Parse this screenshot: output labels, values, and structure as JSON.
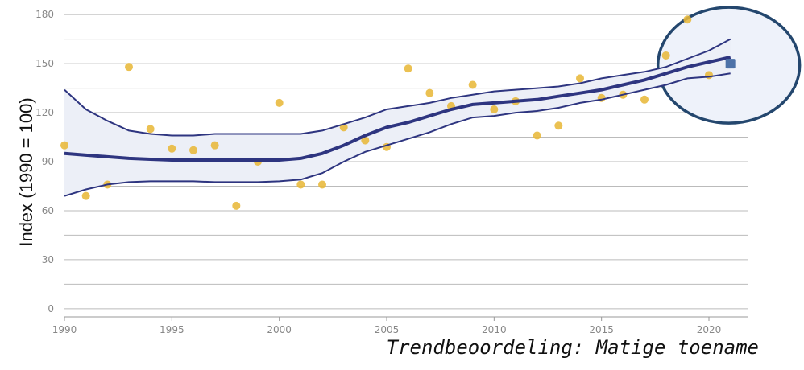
{
  "chart_data": {
    "type": "line",
    "title": "",
    "ylabel": "Index (1990 = 100)",
    "xlabel": "",
    "annotation": "Trendbeoordeling: Matige toename",
    "xlim": [
      1990,
      2021.8
    ],
    "ylim": [
      -5,
      185
    ],
    "xticks": [
      1990,
      1995,
      2000,
      2005,
      2010,
      2015,
      2020
    ],
    "yticks": [
      0,
      30,
      60,
      90,
      120,
      150,
      180
    ],
    "grid": true,
    "points": [
      {
        "x": 1990,
        "y": 100
      },
      {
        "x": 1991,
        "y": 69
      },
      {
        "x": 1992,
        "y": 76
      },
      {
        "x": 1993,
        "y": 148
      },
      {
        "x": 1994,
        "y": 110
      },
      {
        "x": 1995,
        "y": 98
      },
      {
        "x": 1996,
        "y": 97
      },
      {
        "x": 1997,
        "y": 100
      },
      {
        "x": 1998,
        "y": 63
      },
      {
        "x": 1999,
        "y": 90
      },
      {
        "x": 2000,
        "y": 126
      },
      {
        "x": 2001,
        "y": 76
      },
      {
        "x": 2002,
        "y": 76
      },
      {
        "x": 2003,
        "y": 111
      },
      {
        "x": 2004,
        "y": 103
      },
      {
        "x": 2005,
        "y": 99
      },
      {
        "x": 2006,
        "y": 147
      },
      {
        "x": 2007,
        "y": 132
      },
      {
        "x": 2008,
        "y": 124
      },
      {
        "x": 2009,
        "y": 137
      },
      {
        "x": 2010,
        "y": 122
      },
      {
        "x": 2011,
        "y": 127
      },
      {
        "x": 2012,
        "y": 106
      },
      {
        "x": 2013,
        "y": 112
      },
      {
        "x": 2014,
        "y": 141
      },
      {
        "x": 2015,
        "y": 129
      },
      {
        "x": 2016,
        "y": 131
      },
      {
        "x": 2017,
        "y": 128
      },
      {
        "x": 2018,
        "y": 155
      },
      {
        "x": 2019,
        "y": 177
      },
      {
        "x": 2020,
        "y": 143
      }
    ],
    "last_point": {
      "x": 2021,
      "y": 150
    },
    "trend": {
      "x": [
        1990,
        1991,
        1992,
        1993,
        1994,
        1995,
        1996,
        1997,
        1998,
        1999,
        2000,
        2001,
        2002,
        2003,
        2004,
        2005,
        2006,
        2007,
        2008,
        2009,
        2010,
        2011,
        2012,
        2013,
        2014,
        2015,
        2016,
        2017,
        2018,
        2019,
        2020,
        2021
      ],
      "mid": [
        95,
        94,
        93,
        92,
        91.5,
        91,
        91,
        91,
        91,
        91,
        91,
        92,
        95,
        100,
        106,
        111,
        114,
        118,
        122,
        125,
        126,
        127,
        128,
        130,
        132,
        134,
        137,
        140,
        144,
        148,
        151,
        154
      ],
      "upper": [
        134,
        122,
        115,
        109,
        107,
        106,
        106,
        107,
        107,
        107,
        107,
        107,
        109,
        113,
        117,
        122,
        124,
        126,
        129,
        131,
        133,
        134,
        135,
        136,
        138,
        141,
        143,
        145,
        148,
        153,
        158,
        165
      ],
      "lower": [
        69,
        73,
        76,
        77.5,
        78,
        78,
        78,
        77.5,
        77.5,
        77.5,
        78,
        79,
        83,
        90,
        96,
        100,
        104,
        108,
        113,
        117,
        118,
        120,
        121,
        123,
        126,
        128,
        131,
        134,
        137,
        141,
        142,
        144
      ]
    },
    "colors": {
      "points": "#E8B83A",
      "trend": "#2E3580",
      "band": "#ECEFF7",
      "highlight_fill": "#EEF2FA",
      "highlight_stroke": "#24476E",
      "last_point": "#4D72A8",
      "grid": "#BBBBBB"
    }
  }
}
